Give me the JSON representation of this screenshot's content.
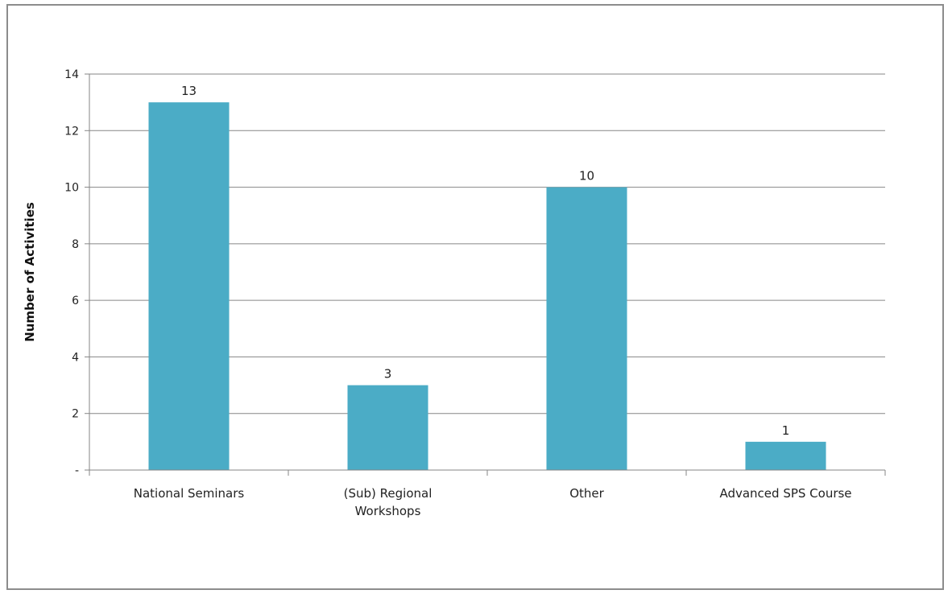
{
  "chart_data": {
    "type": "bar",
    "categories": [
      [
        "National Seminars"
      ],
      [
        "(Sub) Regional",
        "Workshops"
      ],
      [
        "Other"
      ],
      [
        "Advanced SPS Course"
      ]
    ],
    "values": [
      13,
      3,
      10,
      1
    ],
    "data_labels": [
      "13",
      "3",
      "10",
      "1"
    ],
    "title": "",
    "xlabel": "",
    "ylabel": "Number of Activities",
    "ylim": [
      0,
      14
    ],
    "yticks": [
      0,
      2,
      4,
      6,
      8,
      10,
      12,
      14
    ],
    "ytick_labels": [
      "-",
      "2",
      "4",
      "6",
      "8",
      "10",
      "12",
      "14"
    ],
    "grid": true,
    "legend": "none",
    "bar_color": "#4bacc6",
    "grid_color": "#868686"
  }
}
